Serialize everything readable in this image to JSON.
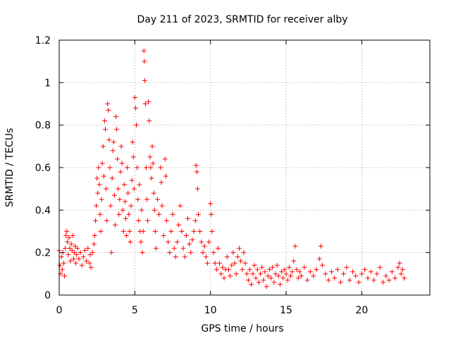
{
  "chart_data": {
    "type": "scatter",
    "title": "Day 211 of 2023, SRMTID for receiver alby",
    "xlabel": "GPS time / hours",
    "ylabel": "SRMTID / TECUs",
    "xlim": [
      0,
      24.5
    ],
    "ylim": [
      0,
      1.2
    ],
    "xticks": [
      0,
      5,
      10,
      15,
      20
    ],
    "xtick_labels": [
      "0",
      "5",
      "10",
      "15",
      "20"
    ],
    "yticks": [
      0,
      0.2,
      0.4,
      0.6,
      0.8,
      1.0,
      1.2
    ],
    "ytick_labels": [
      "0",
      "0.2",
      "0.4",
      "0.6",
      "0.8",
      "1",
      "1.2"
    ],
    "grid": true,
    "marker": "+",
    "color": "#ff0000",
    "series": [
      {
        "name": "SRMTID",
        "points": [
          [
            0.0,
            0.21
          ],
          [
            0.05,
            0.14
          ],
          [
            0.1,
            0.1
          ],
          [
            0.15,
            0.18
          ],
          [
            0.2,
            0.12
          ],
          [
            0.25,
            0.2
          ],
          [
            0.3,
            0.15
          ],
          [
            0.35,
            0.09
          ],
          [
            0.4,
            0.22
          ],
          [
            0.45,
            0.28
          ],
          [
            0.5,
            0.3
          ],
          [
            0.55,
            0.25
          ],
          [
            0.6,
            0.19
          ],
          [
            0.65,
            0.27
          ],
          [
            0.7,
            0.22
          ],
          [
            0.75,
            0.16
          ],
          [
            0.8,
            0.24
          ],
          [
            0.85,
            0.21
          ],
          [
            0.9,
            0.28
          ],
          [
            0.95,
            0.17
          ],
          [
            1.0,
            0.2
          ],
          [
            1.05,
            0.23
          ],
          [
            1.1,
            0.15
          ],
          [
            1.15,
            0.19
          ],
          [
            1.2,
            0.22
          ],
          [
            1.3,
            0.17
          ],
          [
            1.4,
            0.2
          ],
          [
            1.5,
            0.14
          ],
          [
            1.6,
            0.18
          ],
          [
            1.7,
            0.21
          ],
          [
            1.8,
            0.16
          ],
          [
            1.9,
            0.22
          ],
          [
            2.0,
            0.15
          ],
          [
            2.05,
            0.19
          ],
          [
            2.1,
            0.13
          ],
          [
            2.2,
            0.2
          ],
          [
            2.3,
            0.24
          ],
          [
            2.35,
            0.28
          ],
          [
            2.4,
            0.35
          ],
          [
            2.45,
            0.42
          ],
          [
            2.5,
            0.55
          ],
          [
            2.55,
            0.48
          ],
          [
            2.6,
            0.6
          ],
          [
            2.65,
            0.52
          ],
          [
            2.7,
            0.38
          ],
          [
            2.75,
            0.3
          ],
          [
            2.8,
            0.45
          ],
          [
            2.85,
            0.62
          ],
          [
            2.9,
            0.7
          ],
          [
            2.95,
            0.56
          ],
          [
            3.0,
            0.82
          ],
          [
            3.05,
            0.78
          ],
          [
            3.1,
            0.5
          ],
          [
            3.15,
            0.35
          ],
          [
            3.2,
            0.9
          ],
          [
            3.25,
            0.87
          ],
          [
            3.3,
            0.73
          ],
          [
            3.35,
            0.6
          ],
          [
            3.4,
            0.42
          ],
          [
            3.45,
            0.2
          ],
          [
            3.5,
            0.55
          ],
          [
            3.55,
            0.68
          ],
          [
            3.6,
            0.72
          ],
          [
            3.65,
            0.47
          ],
          [
            3.7,
            0.33
          ],
          [
            3.75,
            0.84
          ],
          [
            3.8,
            0.78
          ],
          [
            3.85,
            0.64
          ],
          [
            3.9,
            0.5
          ],
          [
            3.95,
            0.38
          ],
          [
            4.0,
            0.45
          ],
          [
            4.05,
            0.58
          ],
          [
            4.1,
            0.7
          ],
          [
            4.15,
            0.62
          ],
          [
            4.2,
            0.4
          ],
          [
            4.25,
            0.3
          ],
          [
            4.3,
            0.52
          ],
          [
            4.35,
            0.44
          ],
          [
            4.4,
            0.36
          ],
          [
            4.45,
            0.28
          ],
          [
            4.5,
            0.6
          ],
          [
            4.55,
            0.48
          ],
          [
            4.6,
            0.38
          ],
          [
            4.65,
            0.3
          ],
          [
            4.7,
            0.25
          ],
          [
            4.75,
            0.42
          ],
          [
            4.8,
            0.54
          ],
          [
            4.85,
            0.72
          ],
          [
            4.9,
            0.65
          ],
          [
            4.95,
            0.5
          ],
          [
            5.0,
            0.93
          ],
          [
            5.05,
            0.88
          ],
          [
            5.1,
            0.8
          ],
          [
            5.15,
            0.6
          ],
          [
            5.2,
            0.45
          ],
          [
            5.25,
            0.35
          ],
          [
            5.3,
            0.52
          ],
          [
            5.35,
            0.3
          ],
          [
            5.4,
            0.25
          ],
          [
            5.45,
            0.4
          ],
          [
            5.5,
            0.2
          ],
          [
            5.55,
            0.3
          ],
          [
            5.6,
            1.15
          ],
          [
            5.63,
            1.1
          ],
          [
            5.65,
            1.01
          ],
          [
            5.7,
            0.9
          ],
          [
            5.75,
            0.6
          ],
          [
            5.8,
            0.45
          ],
          [
            5.85,
            0.35
          ],
          [
            5.9,
            0.91
          ],
          [
            5.95,
            0.82
          ],
          [
            6.0,
            0.65
          ],
          [
            6.05,
            0.6
          ],
          [
            6.1,
            0.55
          ],
          [
            6.15,
            0.7
          ],
          [
            6.2,
            0.62
          ],
          [
            6.25,
            0.48
          ],
          [
            6.3,
            0.4
          ],
          [
            6.35,
            0.3
          ],
          [
            6.4,
            0.22
          ],
          [
            6.5,
            0.45
          ],
          [
            6.6,
            0.38
          ],
          [
            6.7,
            0.6
          ],
          [
            6.75,
            0.53
          ],
          [
            6.8,
            0.42
          ],
          [
            6.9,
            0.28
          ],
          [
            7.0,
            0.64
          ],
          [
            7.05,
            0.56
          ],
          [
            7.1,
            0.35
          ],
          [
            7.2,
            0.25
          ],
          [
            7.3,
            0.2
          ],
          [
            7.4,
            0.3
          ],
          [
            7.5,
            0.38
          ],
          [
            7.6,
            0.22
          ],
          [
            7.7,
            0.18
          ],
          [
            7.8,
            0.25
          ],
          [
            7.9,
            0.33
          ],
          [
            8.0,
            0.42
          ],
          [
            8.1,
            0.3
          ],
          [
            8.2,
            0.22
          ],
          [
            8.3,
            0.18
          ],
          [
            8.4,
            0.28
          ],
          [
            8.5,
            0.36
          ],
          [
            8.6,
            0.24
          ],
          [
            8.7,
            0.2
          ],
          [
            8.8,
            0.26
          ],
          [
            8.9,
            0.3
          ],
          [
            9.0,
            0.35
          ],
          [
            9.05,
            0.61
          ],
          [
            9.1,
            0.58
          ],
          [
            9.15,
            0.5
          ],
          [
            9.2,
            0.38
          ],
          [
            9.3,
            0.3
          ],
          [
            9.4,
            0.25
          ],
          [
            9.5,
            0.2
          ],
          [
            9.6,
            0.23
          ],
          [
            9.7,
            0.18
          ],
          [
            9.8,
            0.15
          ],
          [
            9.9,
            0.25
          ],
          [
            10.0,
            0.43
          ],
          [
            10.05,
            0.38
          ],
          [
            10.1,
            0.3
          ],
          [
            10.2,
            0.2
          ],
          [
            10.3,
            0.15
          ],
          [
            10.4,
            0.12
          ],
          [
            10.5,
            0.22
          ],
          [
            10.6,
            0.15
          ],
          [
            10.7,
            0.1
          ],
          [
            10.8,
            0.13
          ],
          [
            10.9,
            0.08
          ],
          [
            11.0,
            0.12
          ],
          [
            11.1,
            0.18
          ],
          [
            11.2,
            0.12
          ],
          [
            11.3,
            0.09
          ],
          [
            11.4,
            0.14
          ],
          [
            11.5,
            0.2
          ],
          [
            11.6,
            0.15
          ],
          [
            11.7,
            0.1
          ],
          [
            11.8,
            0.18
          ],
          [
            11.9,
            0.22
          ],
          [
            12.0,
            0.16
          ],
          [
            12.1,
            0.12
          ],
          [
            12.2,
            0.2
          ],
          [
            12.3,
            0.15
          ],
          [
            12.4,
            0.1
          ],
          [
            12.5,
            0.07
          ],
          [
            12.6,
            0.12
          ],
          [
            12.7,
            0.05
          ],
          [
            12.8,
            0.1
          ],
          [
            12.9,
            0.14
          ],
          [
            13.0,
            0.08
          ],
          [
            13.1,
            0.12
          ],
          [
            13.2,
            0.06
          ],
          [
            13.3,
            0.1
          ],
          [
            13.4,
            0.13
          ],
          [
            13.5,
            0.07
          ],
          [
            13.6,
            0.11
          ],
          [
            13.7,
            0.04
          ],
          [
            13.8,
            0.09
          ],
          [
            13.9,
            0.12
          ],
          [
            14.0,
            0.08
          ],
          [
            14.1,
            0.13
          ],
          [
            14.2,
            0.06
          ],
          [
            14.3,
            0.1
          ],
          [
            14.4,
            0.14
          ],
          [
            14.5,
            0.09
          ],
          [
            14.6,
            0.05
          ],
          [
            14.7,
            0.11
          ],
          [
            14.8,
            0.08
          ],
          [
            14.9,
            0.12
          ],
          [
            15.0,
            0.1
          ],
          [
            15.1,
            0.07
          ],
          [
            15.2,
            0.13
          ],
          [
            15.3,
            0.09
          ],
          [
            15.4,
            0.11
          ],
          [
            15.5,
            0.16
          ],
          [
            15.6,
            0.23
          ],
          [
            15.7,
            0.12
          ],
          [
            15.8,
            0.08
          ],
          [
            15.9,
            0.11
          ],
          [
            16.0,
            0.09
          ],
          [
            16.2,
            0.13
          ],
          [
            16.4,
            0.07
          ],
          [
            16.6,
            0.11
          ],
          [
            16.8,
            0.09
          ],
          [
            17.0,
            0.12
          ],
          [
            17.2,
            0.17
          ],
          [
            17.3,
            0.23
          ],
          [
            17.4,
            0.14
          ],
          [
            17.6,
            0.1
          ],
          [
            17.8,
            0.07
          ],
          [
            18.0,
            0.11
          ],
          [
            18.2,
            0.08
          ],
          [
            18.4,
            0.12
          ],
          [
            18.6,
            0.06
          ],
          [
            18.8,
            0.1
          ],
          [
            19.0,
            0.13
          ],
          [
            19.2,
            0.07
          ],
          [
            19.4,
            0.11
          ],
          [
            19.6,
            0.09
          ],
          [
            19.8,
            0.06
          ],
          [
            20.0,
            0.1
          ],
          [
            20.2,
            0.12
          ],
          [
            20.4,
            0.08
          ],
          [
            20.6,
            0.11
          ],
          [
            20.8,
            0.07
          ],
          [
            21.0,
            0.1
          ],
          [
            21.2,
            0.13
          ],
          [
            21.4,
            0.06
          ],
          [
            21.6,
            0.09
          ],
          [
            21.8,
            0.07
          ],
          [
            22.0,
            0.11
          ],
          [
            22.2,
            0.08
          ],
          [
            22.4,
            0.13
          ],
          [
            22.5,
            0.15
          ],
          [
            22.6,
            0.1
          ],
          [
            22.7,
            0.12
          ],
          [
            22.8,
            0.08
          ]
        ]
      }
    ]
  }
}
